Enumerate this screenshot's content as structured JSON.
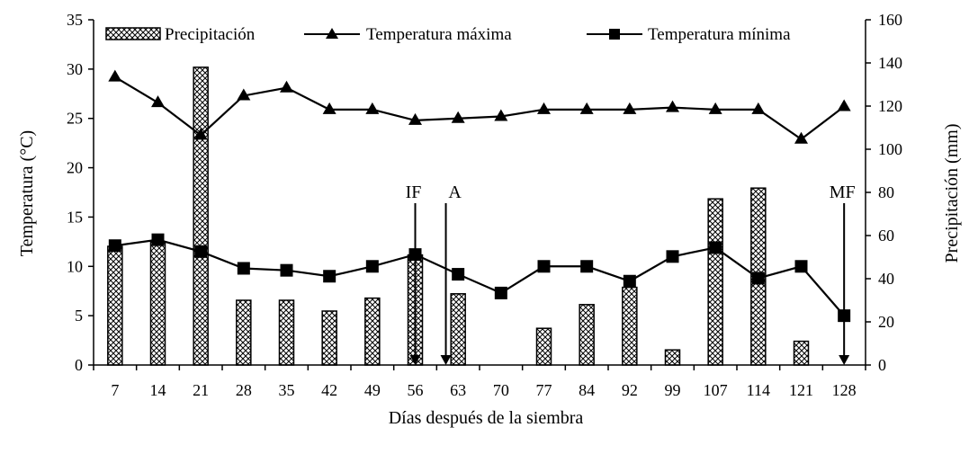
{
  "chart_data": {
    "type": "bar",
    "categories": [
      "7",
      "14",
      "21",
      "28",
      "35",
      "42",
      "49",
      "56",
      "63",
      "70",
      "77",
      "84",
      "92",
      "99",
      "107",
      "114",
      "121",
      "128"
    ],
    "xlabel": "Días después de la siembra",
    "ylabel_left": "Temperatura (°C)",
    "ylabel_right": "Precipitación (mm)",
    "ylim_left": [
      0,
      35
    ],
    "yticks_left": [
      0,
      5,
      10,
      15,
      20,
      25,
      30,
      35
    ],
    "ylim_right": [
      0,
      160
    ],
    "yticks_right": [
      0,
      20,
      40,
      60,
      80,
      100,
      120,
      140,
      160
    ],
    "grid": false,
    "legend_position": "top",
    "series": [
      {
        "name": "Precipitación",
        "kind": "bar",
        "axis": "right",
        "values": [
          55,
          57,
          138,
          30,
          30,
          25,
          31,
          51,
          33,
          0,
          17,
          28,
          36,
          7,
          77,
          82,
          11,
          0
        ]
      },
      {
        "name": "Temperatura máxima",
        "kind": "line",
        "marker": "triangle",
        "axis": "left",
        "values": [
          29.2,
          26.6,
          23.3,
          27.3,
          28.1,
          25.9,
          25.9,
          24.8,
          25.0,
          25.2,
          25.9,
          25.9,
          25.9,
          26.1,
          25.9,
          25.9,
          22.9,
          26.2
        ]
      },
      {
        "name": "Temperatura mínima",
        "kind": "line",
        "marker": "square",
        "axis": "left",
        "values": [
          12.1,
          12.7,
          11.5,
          9.8,
          9.6,
          9.0,
          10.0,
          11.2,
          9.2,
          7.3,
          10.0,
          10.0,
          8.5,
          11.0,
          11.9,
          8.8,
          10.0,
          5.0
        ]
      }
    ],
    "annotations": [
      {
        "text": "IF",
        "x": 56,
        "tip_y": 0
      },
      {
        "text": "A",
        "x": 61,
        "tip_y": 0
      },
      {
        "text": "MF",
        "x": 128,
        "tip_y": 0
      }
    ]
  }
}
